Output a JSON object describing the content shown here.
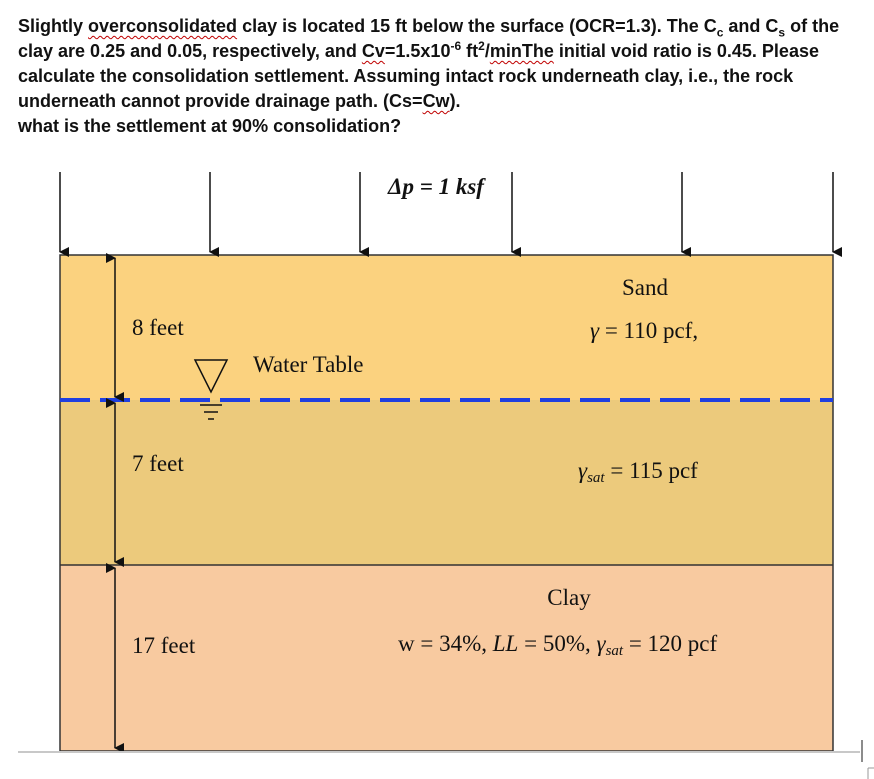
{
  "problem": {
    "runs": [
      "Slightly ",
      "overconsolidated",
      " clay is located 15 ft below the surface (OCR=1.3).  The C",
      "c",
      " and C",
      "s",
      " of the clay are 0.25 and 0.05, respectively, and ",
      "Cv",
      "=1.5x10",
      "-6",
      " ft",
      "2",
      "/",
      "minThe",
      " initial void ratio is 0.45.  Please calculate the consolidation settlement. Assuming intact rock underneath clay, i.e., the rock underneath cannot provide drainage path. (Cs=",
      "Cw",
      ")."
    ],
    "question": "what is the settlement at 90% consolidation?"
  },
  "diagram": {
    "load": "Δp = 1 ksf",
    "sand": {
      "name": "Sand",
      "unit_weight": [
        "γ",
        " = 110 pcf,"
      ],
      "thickness": "8 feet"
    },
    "water_table": "Water Table",
    "saturated_sand": {
      "thickness": "7 feet",
      "unit_weight": [
        "γ",
        "sat",
        " = 115 pcf"
      ]
    },
    "clay": {
      "name": "Clay",
      "thickness": "17 feet",
      "properties": [
        "w = 34%, ",
        "LL",
        " = 50%, ",
        "γ",
        "sat",
        " = 120 pcf"
      ]
    }
  }
}
